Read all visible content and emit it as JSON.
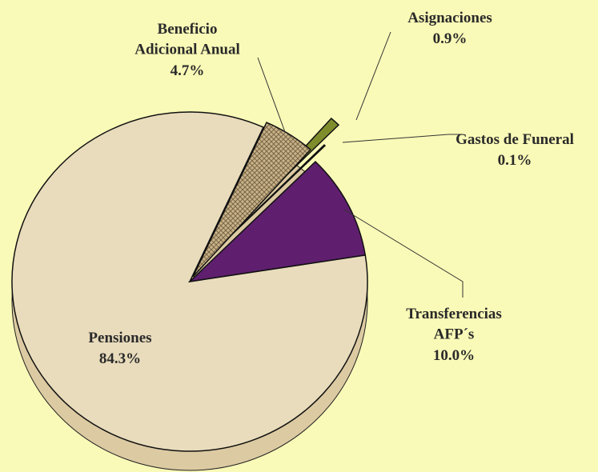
{
  "chart_data": {
    "type": "pie",
    "categories": [
      "Pensiones",
      "Transferencias\nAFP´s",
      "Gastos de Funeral",
      "Asignaciones",
      "Beneficio\nAdicional Anual"
    ],
    "values": [
      84.3,
      10.0,
      0.1,
      0.9,
      4.7
    ],
    "value_labels": [
      "84.3%",
      "10.0%",
      "0.1%",
      "0.9%",
      "4.7%"
    ],
    "colors": [
      "#e9dcbc",
      "#5f1f6e",
      "#a6a8b8",
      "#7f8c2c",
      "#b9a57d"
    ]
  }
}
